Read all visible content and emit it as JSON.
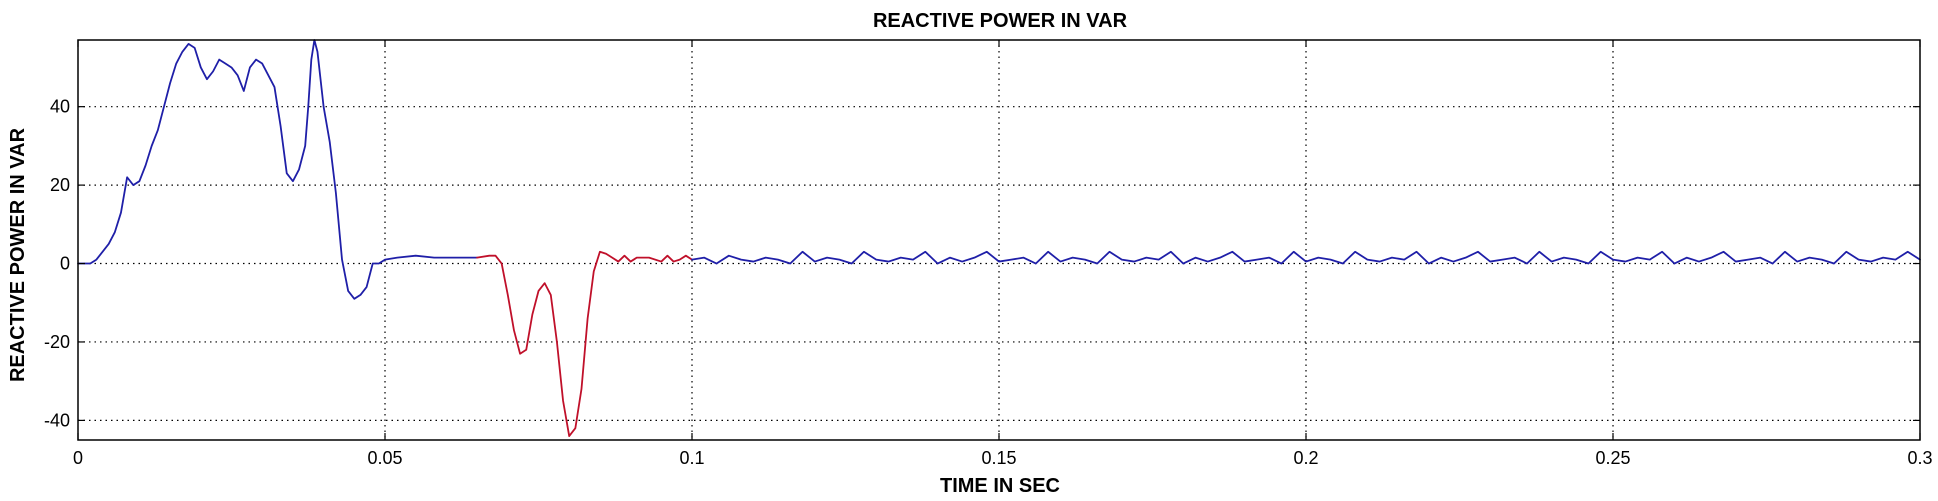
{
  "chart_data": {
    "type": "line",
    "title": "REACTIVE POWER IN VAR",
    "xlabel": "TIME IN SEC",
    "ylabel": "REACTIVE POWER IN VAR",
    "xlim": [
      0,
      0.3
    ],
    "ylim": [
      -45,
      57
    ],
    "x_ticks": [
      0,
      0.05,
      0.1,
      0.15,
      0.2,
      0.25,
      0.3
    ],
    "x_tick_labels": [
      "0",
      "0.05",
      "0.1",
      "0.15",
      "0.2",
      "0.25",
      "0.3"
    ],
    "y_ticks": [
      -40,
      -20,
      0,
      20,
      40
    ],
    "y_tick_labels": [
      "-40",
      "-20",
      "0",
      "20",
      "40"
    ],
    "grid": true,
    "legend": "none",
    "colors": {
      "blue_series": "#1f1fa8",
      "red_series": "#c0102a",
      "grid": "#000000",
      "axes": "#000000"
    },
    "series": [
      {
        "color": "#1f1fa8",
        "points": [
          [
            0.0,
            0
          ],
          [
            0.002,
            0
          ],
          [
            0.003,
            1
          ],
          [
            0.005,
            5
          ],
          [
            0.006,
            8
          ],
          [
            0.007,
            13
          ],
          [
            0.008,
            22
          ],
          [
            0.009,
            20
          ],
          [
            0.01,
            21
          ],
          [
            0.011,
            25
          ],
          [
            0.012,
            30
          ],
          [
            0.013,
            34
          ],
          [
            0.014,
            40
          ],
          [
            0.015,
            46
          ],
          [
            0.016,
            51
          ],
          [
            0.017,
            54
          ],
          [
            0.018,
            56
          ],
          [
            0.019,
            55
          ],
          [
            0.02,
            50
          ],
          [
            0.021,
            47
          ],
          [
            0.022,
            49
          ],
          [
            0.023,
            52
          ],
          [
            0.024,
            51
          ],
          [
            0.025,
            50
          ],
          [
            0.026,
            48
          ],
          [
            0.027,
            44
          ],
          [
            0.028,
            50
          ],
          [
            0.029,
            52
          ],
          [
            0.03,
            51
          ],
          [
            0.031,
            48
          ],
          [
            0.032,
            45
          ],
          [
            0.033,
            35
          ],
          [
            0.034,
            23
          ],
          [
            0.035,
            21
          ],
          [
            0.036,
            24
          ],
          [
            0.037,
            30
          ],
          [
            0.0375,
            40
          ],
          [
            0.038,
            52
          ],
          [
            0.0385,
            57
          ],
          [
            0.039,
            54
          ],
          [
            0.04,
            40
          ],
          [
            0.041,
            31
          ],
          [
            0.042,
            18
          ],
          [
            0.043,
            1
          ],
          [
            0.044,
            -7
          ],
          [
            0.045,
            -9
          ],
          [
            0.046,
            -8
          ],
          [
            0.047,
            -6
          ],
          [
            0.048,
            0
          ],
          [
            0.049,
            0
          ],
          [
            0.05,
            1
          ],
          [
            0.052,
            1.5
          ],
          [
            0.055,
            2
          ],
          [
            0.058,
            1.5
          ],
          [
            0.062,
            1.5
          ],
          [
            0.065,
            1.5
          ]
        ]
      },
      {
        "color": "#c0102a",
        "points": [
          [
            0.065,
            1.5
          ],
          [
            0.067,
            2
          ],
          [
            0.068,
            2
          ],
          [
            0.069,
            0
          ],
          [
            0.07,
            -8
          ],
          [
            0.071,
            -17
          ],
          [
            0.072,
            -23
          ],
          [
            0.073,
            -22
          ],
          [
            0.074,
            -13
          ],
          [
            0.075,
            -7
          ],
          [
            0.076,
            -5
          ],
          [
            0.077,
            -8
          ],
          [
            0.078,
            -20
          ],
          [
            0.079,
            -35
          ],
          [
            0.08,
            -44
          ],
          [
            0.081,
            -42
          ],
          [
            0.082,
            -32
          ],
          [
            0.083,
            -14
          ],
          [
            0.084,
            -2
          ],
          [
            0.085,
            3
          ],
          [
            0.086,
            2.5
          ],
          [
            0.087,
            1.5
          ],
          [
            0.088,
            0.5
          ],
          [
            0.089,
            2
          ],
          [
            0.09,
            0.5
          ],
          [
            0.091,
            1.5
          ],
          [
            0.093,
            1.5
          ],
          [
            0.095,
            0.5
          ],
          [
            0.096,
            2
          ],
          [
            0.097,
            0.5
          ],
          [
            0.098,
            1
          ],
          [
            0.099,
            2
          ],
          [
            0.1,
            1
          ]
        ]
      },
      {
        "color": "#1f1fa8",
        "points": [
          [
            0.1,
            1
          ],
          [
            0.102,
            1.5
          ],
          [
            0.104,
            0
          ],
          [
            0.106,
            2
          ],
          [
            0.108,
            1
          ],
          [
            0.11,
            0.5
          ],
          [
            0.112,
            1.5
          ],
          [
            0.114,
            1
          ],
          [
            0.116,
            0
          ],
          [
            0.118,
            3
          ],
          [
            0.12,
            0.5
          ],
          [
            0.122,
            1.5
          ],
          [
            0.124,
            1
          ],
          [
            0.126,
            0
          ],
          [
            0.128,
            3
          ],
          [
            0.13,
            1
          ],
          [
            0.132,
            0.5
          ],
          [
            0.134,
            1.5
          ],
          [
            0.136,
            1
          ],
          [
            0.138,
            3
          ],
          [
            0.14,
            0
          ],
          [
            0.142,
            1.5
          ],
          [
            0.144,
            0.5
          ],
          [
            0.146,
            1.5
          ],
          [
            0.148,
            3
          ],
          [
            0.15,
            0.5
          ],
          [
            0.152,
            1
          ],
          [
            0.154,
            1.5
          ],
          [
            0.156,
            0
          ],
          [
            0.158,
            3
          ],
          [
            0.16,
            0.5
          ],
          [
            0.162,
            1.5
          ],
          [
            0.164,
            1
          ],
          [
            0.166,
            0
          ],
          [
            0.168,
            3
          ],
          [
            0.17,
            1
          ],
          [
            0.172,
            0.5
          ],
          [
            0.174,
            1.5
          ],
          [
            0.176,
            1
          ],
          [
            0.178,
            3
          ],
          [
            0.18,
            0
          ],
          [
            0.182,
            1.5
          ],
          [
            0.184,
            0.5
          ],
          [
            0.186,
            1.5
          ],
          [
            0.188,
            3
          ],
          [
            0.19,
            0.5
          ],
          [
            0.192,
            1
          ],
          [
            0.194,
            1.5
          ],
          [
            0.196,
            0
          ],
          [
            0.198,
            3
          ],
          [
            0.2,
            0.5
          ],
          [
            0.202,
            1.5
          ],
          [
            0.204,
            1
          ],
          [
            0.206,
            0
          ],
          [
            0.208,
            3
          ],
          [
            0.21,
            1
          ],
          [
            0.212,
            0.5
          ],
          [
            0.214,
            1.5
          ],
          [
            0.216,
            1
          ],
          [
            0.218,
            3
          ],
          [
            0.22,
            0
          ],
          [
            0.222,
            1.5
          ],
          [
            0.224,
            0.5
          ],
          [
            0.226,
            1.5
          ],
          [
            0.228,
            3
          ],
          [
            0.23,
            0.5
          ],
          [
            0.232,
            1
          ],
          [
            0.234,
            1.5
          ],
          [
            0.236,
            0
          ],
          [
            0.238,
            3
          ],
          [
            0.24,
            0.5
          ],
          [
            0.242,
            1.5
          ],
          [
            0.244,
            1
          ],
          [
            0.246,
            0
          ],
          [
            0.248,
            3
          ],
          [
            0.25,
            1
          ],
          [
            0.252,
            0.5
          ],
          [
            0.254,
            1.5
          ],
          [
            0.256,
            1
          ],
          [
            0.258,
            3
          ],
          [
            0.26,
            0
          ],
          [
            0.262,
            1.5
          ],
          [
            0.264,
            0.5
          ],
          [
            0.266,
            1.5
          ],
          [
            0.268,
            3
          ],
          [
            0.27,
            0.5
          ],
          [
            0.272,
            1
          ],
          [
            0.274,
            1.5
          ],
          [
            0.276,
            0
          ],
          [
            0.278,
            3
          ],
          [
            0.28,
            0.5
          ],
          [
            0.282,
            1.5
          ],
          [
            0.284,
            1
          ],
          [
            0.286,
            0
          ],
          [
            0.288,
            3
          ],
          [
            0.29,
            1
          ],
          [
            0.292,
            0.5
          ],
          [
            0.294,
            1.5
          ],
          [
            0.296,
            1
          ],
          [
            0.298,
            3
          ],
          [
            0.3,
            1
          ]
        ]
      }
    ]
  }
}
